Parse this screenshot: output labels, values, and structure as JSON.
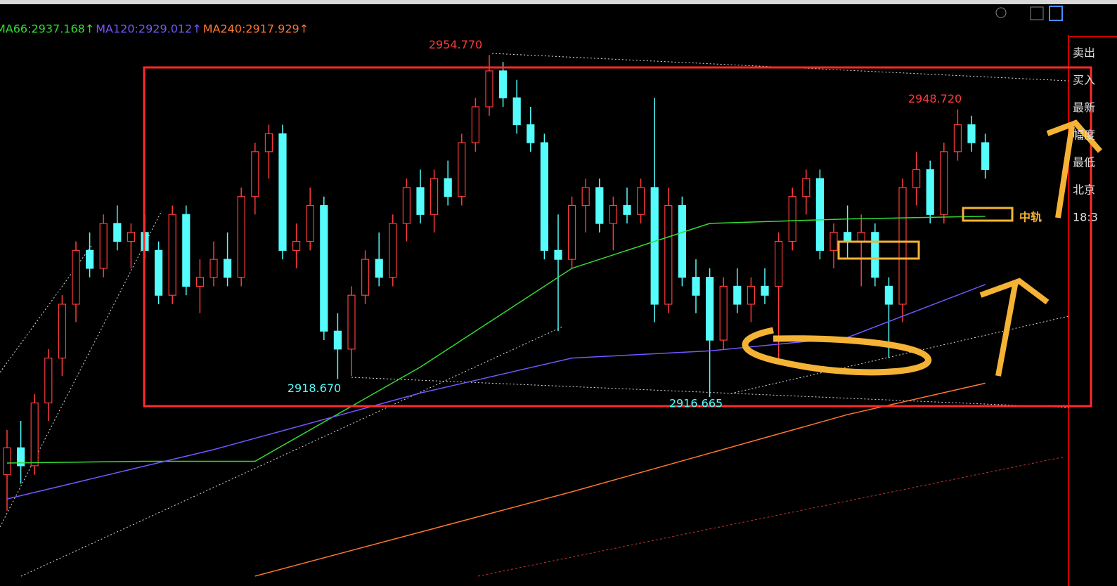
{
  "chart_data": {
    "type": "candlestick",
    "ylim": [
      2895.6,
      2960.9
    ],
    "up_color": "#ff3b3b",
    "down_color": "#54fcfc",
    "candles": [
      [
        2908,
        2913,
        2904,
        2911
      ],
      [
        2911,
        2914,
        2907,
        2909
      ],
      [
        2909,
        2917,
        2908,
        2916
      ],
      [
        2916,
        2922,
        2914,
        2921
      ],
      [
        2921,
        2928,
        2919,
        2927
      ],
      [
        2927,
        2934,
        2925,
        2933
      ],
      [
        2933,
        2935,
        2930,
        2931
      ],
      [
        2931,
        2937,
        2930,
        2936
      ],
      [
        2936,
        2938,
        2933,
        2934
      ],
      [
        2934,
        2936,
        2931,
        2935
      ],
      [
        2935,
        2937,
        2932,
        2933
      ],
      [
        2933,
        2934,
        2927,
        2928
      ],
      [
        2928,
        2938,
        2927,
        2937
      ],
      [
        2937,
        2938,
        2928,
        2929
      ],
      [
        2929,
        2932,
        2926,
        2930
      ],
      [
        2930,
        2934,
        2929,
        2932
      ],
      [
        2932,
        2935,
        2929,
        2930
      ],
      [
        2930,
        2940,
        2929,
        2939
      ],
      [
        2939,
        2945,
        2937,
        2944
      ],
      [
        2944,
        2947,
        2941,
        2946
      ],
      [
        2946,
        2947,
        2932,
        2933
      ],
      [
        2933,
        2936,
        2931,
        2934
      ],
      [
        2934,
        2940,
        2933,
        2938
      ],
      [
        2938,
        2939,
        2923,
        2924
      ],
      [
        2924,
        2926,
        2918.67,
        2922
      ],
      [
        2922,
        2929,
        2919,
        2928
      ],
      [
        2928,
        2933,
        2927,
        2932
      ],
      [
        2932,
        2935,
        2929,
        2930
      ],
      [
        2930,
        2937,
        2929,
        2936
      ],
      [
        2936,
        2941,
        2934,
        2940
      ],
      [
        2940,
        2942,
        2936,
        2937
      ],
      [
        2937,
        2942,
        2935,
        2941
      ],
      [
        2941,
        2943,
        2938,
        2939
      ],
      [
        2939,
        2946,
        2938,
        2945
      ],
      [
        2945,
        2950,
        2944,
        2949
      ],
      [
        2949,
        2954.77,
        2948,
        2953
      ],
      [
        2953,
        2954,
        2949,
        2950
      ],
      [
        2950,
        2952,
        2946,
        2947
      ],
      [
        2947,
        2949,
        2944,
        2945
      ],
      [
        2945,
        2946,
        2932,
        2933
      ],
      [
        2933,
        2937,
        2924,
        2932
      ],
      [
        2932,
        2939,
        2931,
        2938
      ],
      [
        2938,
        2941,
        2935,
        2940
      ],
      [
        2940,
        2941,
        2935,
        2936
      ],
      [
        2936,
        2939,
        2933,
        2938
      ],
      [
        2938,
        2940,
        2936,
        2937
      ],
      [
        2937,
        2941,
        2936,
        2940
      ],
      [
        2940,
        2950,
        2925,
        2927
      ],
      [
        2927,
        2940,
        2926,
        2938
      ],
      [
        2938,
        2939,
        2929,
        2930
      ],
      [
        2930,
        2932,
        2926,
        2928
      ],
      [
        2930,
        2931,
        2916.665,
        2923
      ],
      [
        2923,
        2930,
        2922,
        2929
      ],
      [
        2929,
        2931,
        2926,
        2927
      ],
      [
        2927,
        2930,
        2925,
        2929
      ],
      [
        2929,
        2931,
        2927,
        2928
      ],
      [
        2929,
        2935,
        2921,
        2934
      ],
      [
        2934,
        2940,
        2933,
        2939
      ],
      [
        2939,
        2942,
        2937,
        2941
      ],
      [
        2941,
        2942,
        2932,
        2933
      ],
      [
        2933,
        2936,
        2931,
        2935
      ],
      [
        2935,
        2938,
        2932,
        2934
      ],
      [
        2934,
        2937,
        2929,
        2935
      ],
      [
        2935,
        2936,
        2929,
        2930
      ],
      [
        2929,
        2930,
        2921,
        2927
      ],
      [
        2927,
        2941,
        2925,
        2940
      ],
      [
        2940,
        2944,
        2938,
        2942
      ],
      [
        2942,
        2943,
        2936,
        2937
      ],
      [
        2937,
        2945,
        2936,
        2944
      ],
      [
        2944,
        2948.72,
        2943,
        2947
      ],
      [
        2947,
        2948,
        2944,
        2945
      ],
      [
        2945,
        2946,
        2941,
        2942
      ]
    ],
    "series": [
      {
        "name": "MA66:2937.168↑",
        "color": "#33dd33",
        "x": [
          0,
          10,
          18,
          30,
          41,
          51,
          61,
          71
        ],
        "values": [
          2909.3,
          2909.5,
          2909.5,
          2920,
          2931,
          2936,
          2936.5,
          2936.8
        ]
      },
      {
        "name": "MA120:2929.012↑",
        "color": "#7755ff",
        "x": [
          0,
          15,
          30,
          41,
          51,
          61,
          71
        ],
        "values": [
          2905.3,
          2910.8,
          2917.1,
          2921,
          2921.8,
          2923.3,
          2929.2
        ]
      },
      {
        "name": "MA240:2917.929↑",
        "color": "#ff7733",
        "x": [
          18,
          41,
          61,
          71
        ],
        "values": [
          2896.7,
          2906.1,
          2914.7,
          2918.2
        ]
      }
    ],
    "annotations": [
      {
        "value": 2954.77,
        "label": "2954.770"
      },
      {
        "value": 2948.72,
        "label": "2948.720"
      },
      {
        "value": 2918.67,
        "label": "2918.670"
      },
      {
        "value": 2916.665,
        "label": "2916.665"
      }
    ],
    "note_label": "中轨",
    "side_panel": [
      "卖出",
      "买入",
      "最新",
      "幅度",
      "最低",
      "北京",
      "18:3"
    ]
  }
}
